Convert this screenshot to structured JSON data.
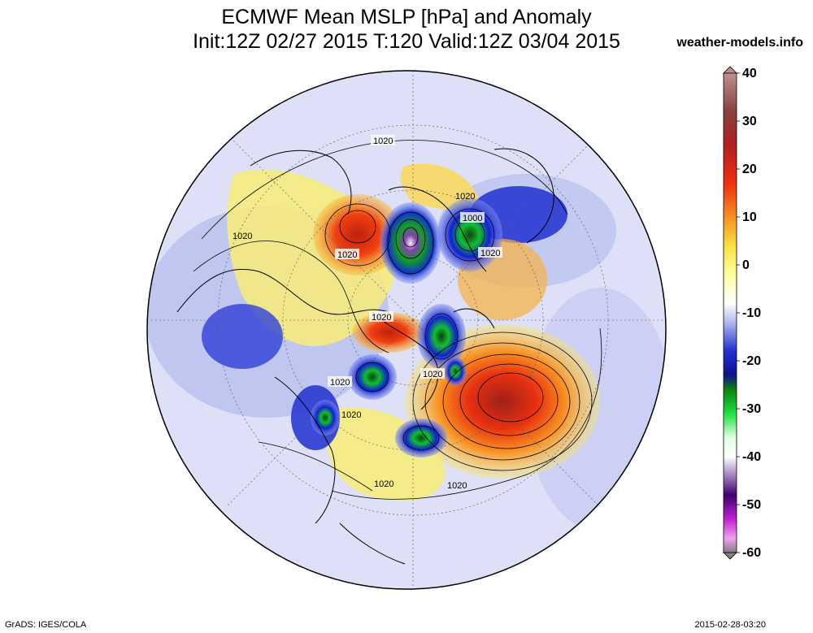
{
  "header": {
    "title_line1": "ECMWF Mean MSLP [hPa] and Anomaly",
    "title_line2": "Init:12Z 02/27 2015 T:120 Valid:12Z 03/04 2015",
    "site": "weather-models.info"
  },
  "footer": {
    "left": "GrADS: IGES/COLA",
    "right": "2015-02-28-03:20"
  },
  "colorbar": {
    "ticks": [
      "40",
      "30",
      "20",
      "10",
      "0",
      "-10",
      "-20",
      "-30",
      "-40",
      "-50",
      "-60"
    ],
    "range": [
      -60,
      40
    ],
    "colors_top_to_bottom": [
      "#8a6060",
      "#b02020",
      "#f03010",
      "#f8a020",
      "#f8f060",
      "#ffffff",
      "#8090f0",
      "#1020d0",
      "#10c020",
      "#ffffff",
      "#6020a0",
      "#c020d0",
      "#808080"
    ]
  },
  "map": {
    "projection": "north polar stereographic",
    "contour_labels": [
      "1020",
      "1020",
      "1020",
      "1000",
      "1020",
      "1020",
      "1020",
      "1020",
      "1020",
      "1020",
      "1020",
      "1020"
    ]
  }
}
